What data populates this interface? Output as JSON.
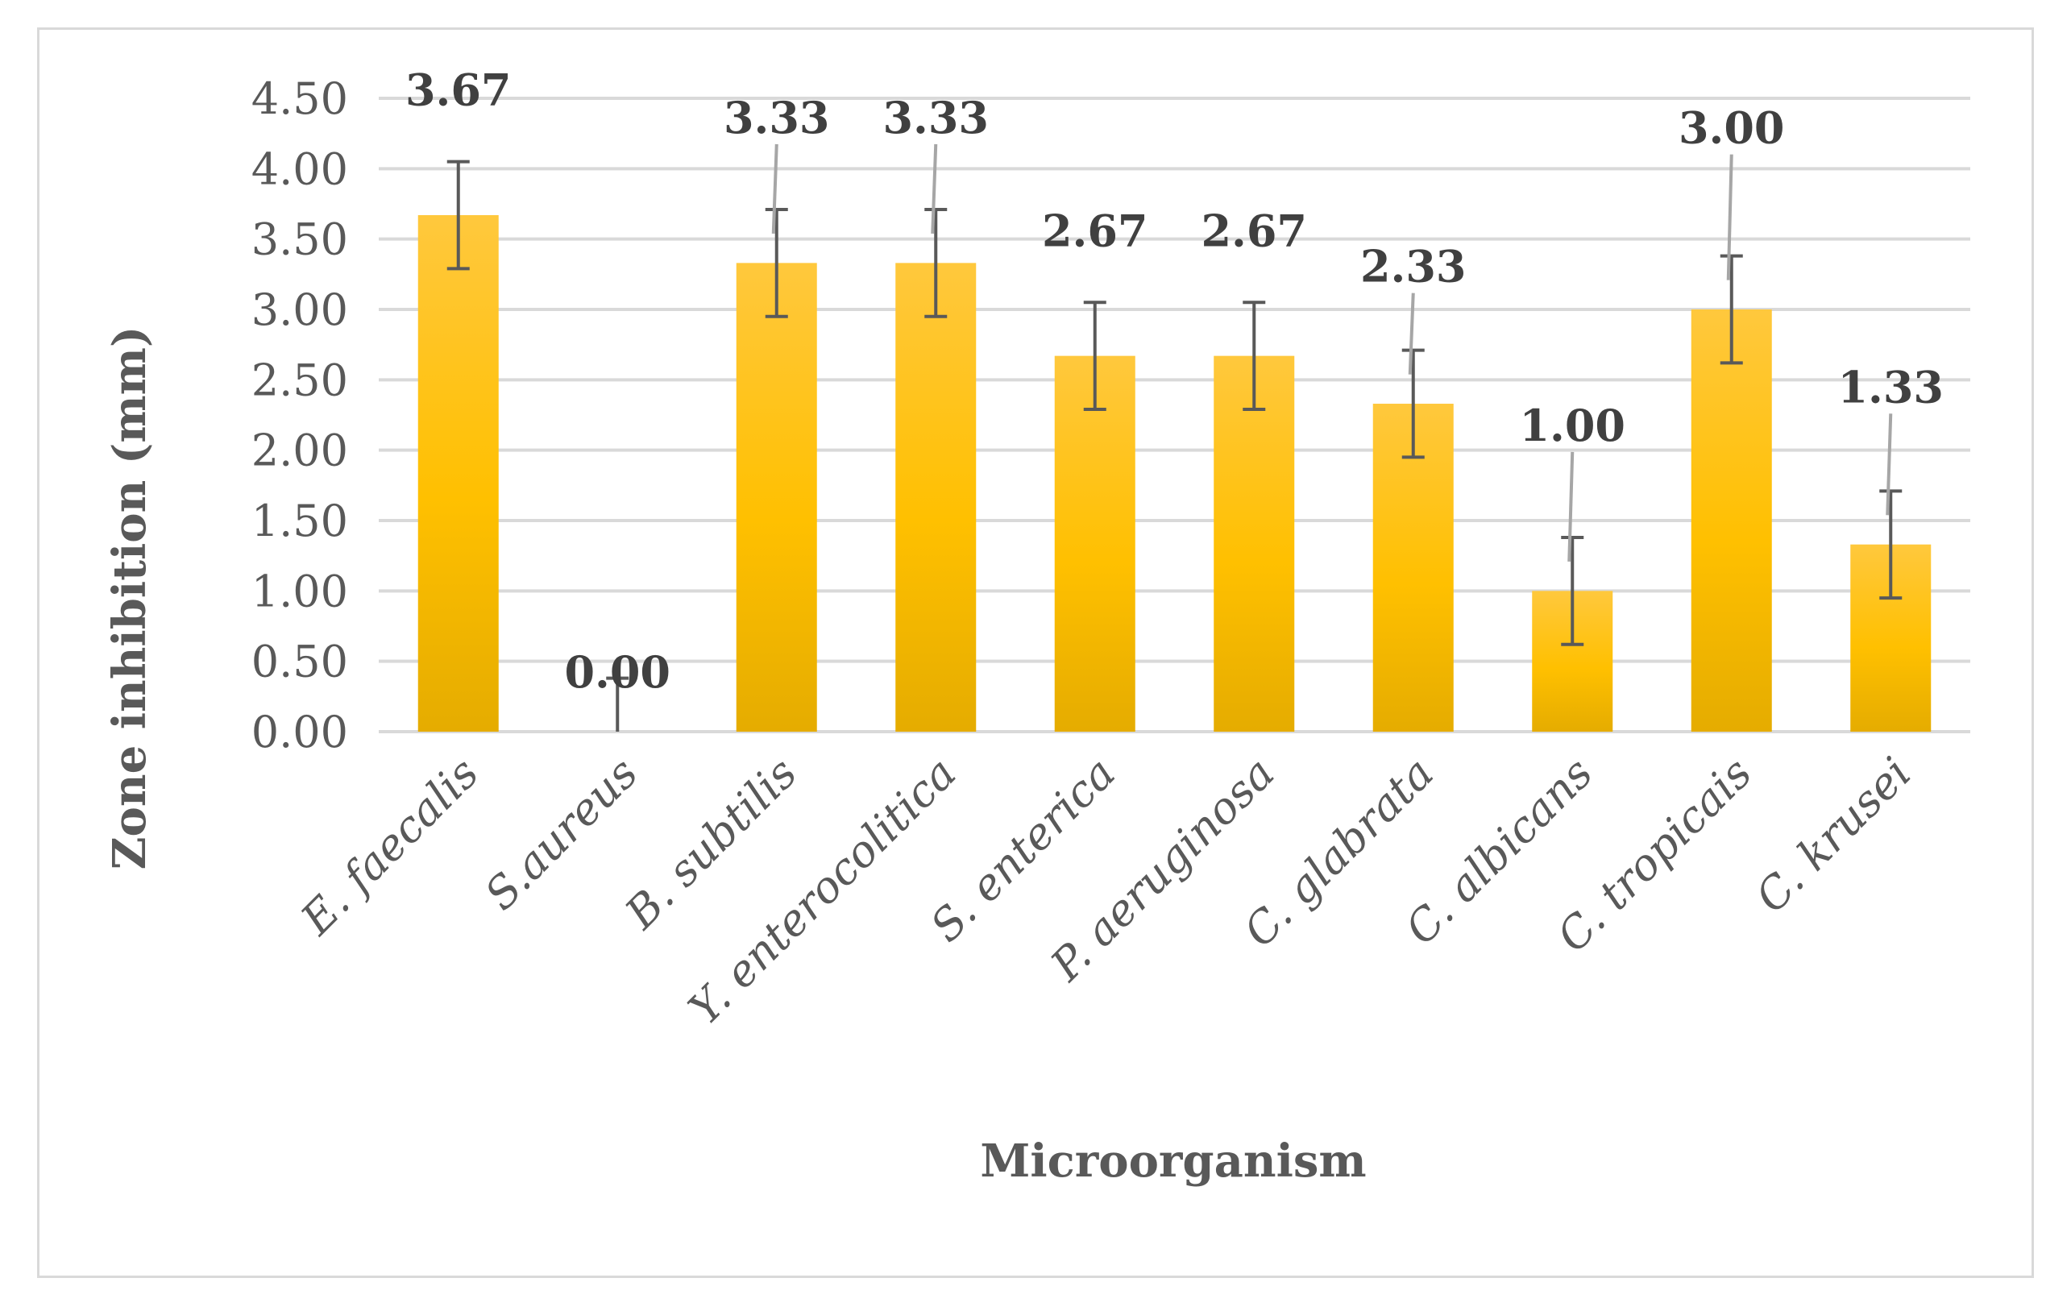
{
  "chart_data": {
    "type": "bar",
    "title": "",
    "xlabel": "Microorganism",
    "ylabel": "Zone inhibition (mm)",
    "ylim": [
      0,
      4.5
    ],
    "ytick_step": 0.5,
    "yticks": [
      "0.00",
      "0.50",
      "1.00",
      "1.50",
      "2.00",
      "2.50",
      "3.00",
      "3.50",
      "4.00",
      "4.50"
    ],
    "grid": true,
    "legend": "none",
    "categories": [
      "E. faecalis",
      "S.aureus",
      "B. subtilis",
      "Y. enterocolitica",
      "S. enterica",
      "P. aeruginosa",
      "C. glabrata",
      "C. albicans",
      "C. tropicais",
      "C. krusei"
    ],
    "values": [
      3.67,
      0,
      3.33,
      3.33,
      2.67,
      2.67,
      2.33,
      1.0,
      3.0,
      1.33
    ],
    "value_labels": [
      "3.67",
      "0.00",
      "3.33",
      "3.33",
      "2.67",
      "2.67",
      "2.33",
      "1.00",
      "3.00",
      "1.33"
    ],
    "error": [
      0.38,
      0.38,
      0.38,
      0.38,
      0.38,
      0.38,
      0.38,
      0.38,
      0.38,
      0.38
    ],
    "colors": {
      "bar_top": "#ffc83d",
      "bar_mid": "#ffc000",
      "bar_bottom": "#e5ac00",
      "gridline": "#d9d9d9",
      "error_bar": "#595959",
      "leader_line": "#a6a6a6",
      "frame": "#d9d9d9"
    }
  }
}
